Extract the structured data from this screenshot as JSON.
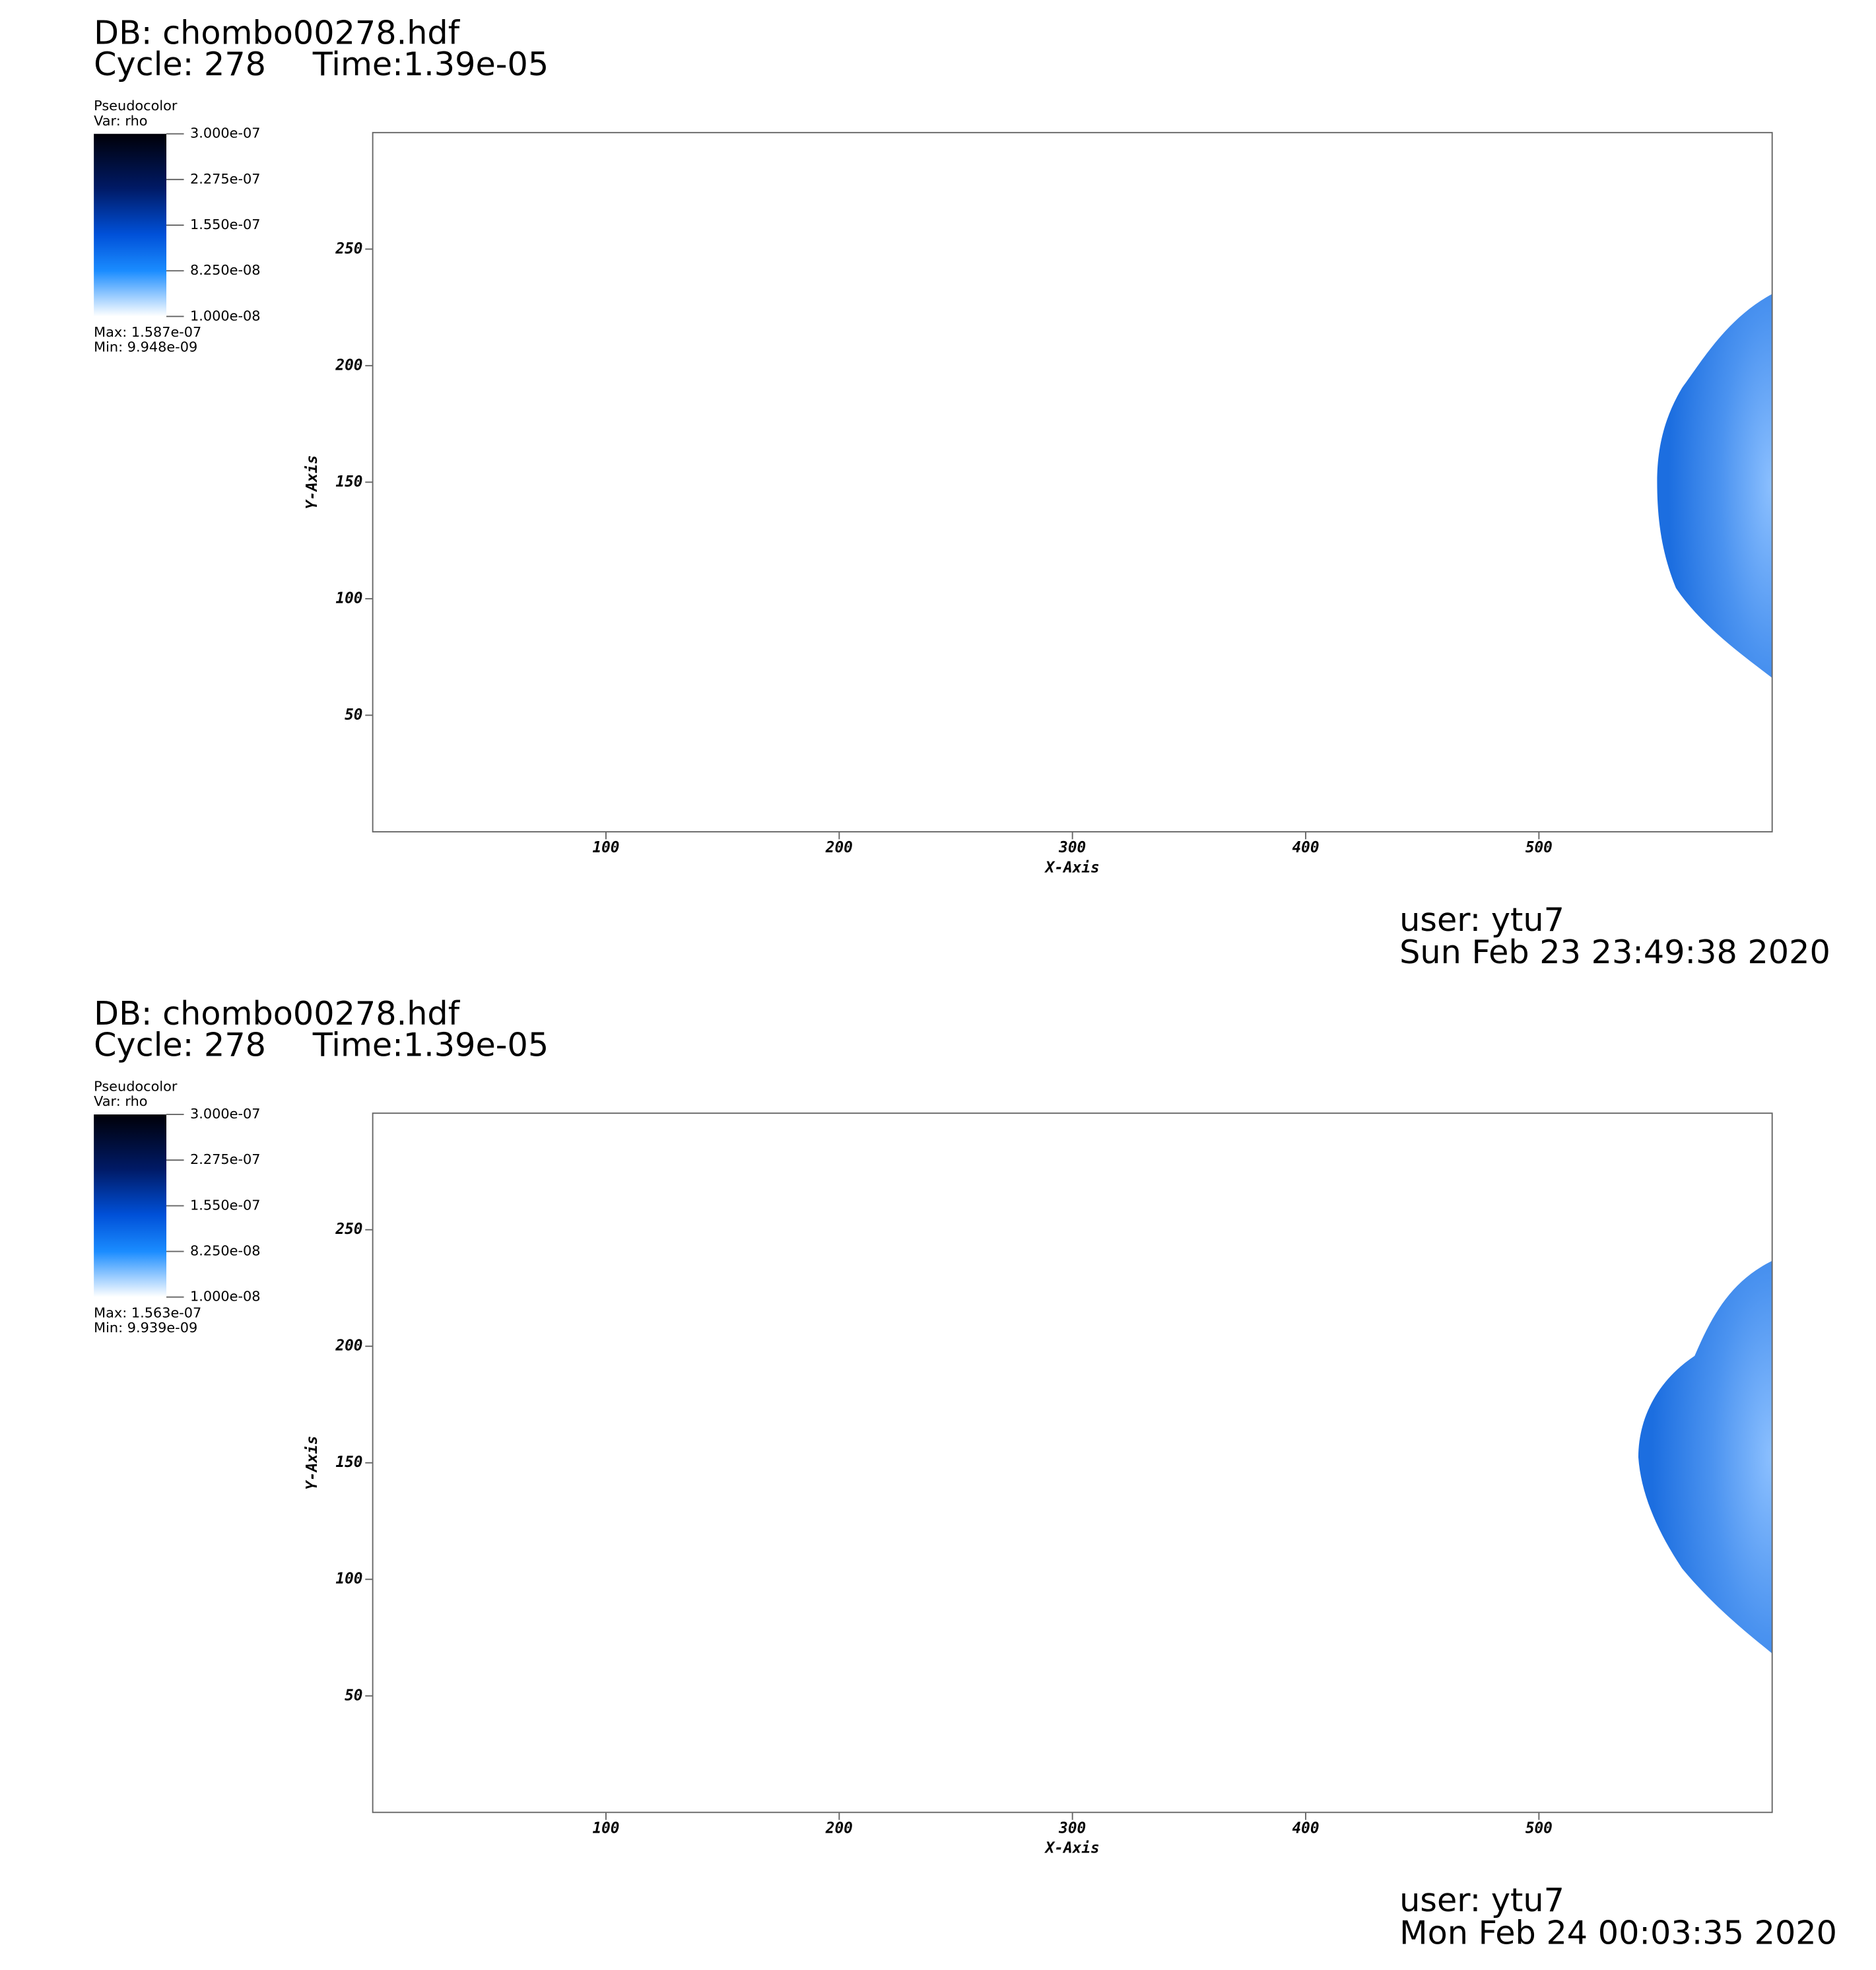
{
  "chart_data": [
    {
      "type": "pseudocolor",
      "db": "DB: chombo00278.hdf",
      "cycle": "Cycle: 278",
      "time": "Time:1.39e-05",
      "legend": {
        "title": "Pseudocolor",
        "var": "Var: rho",
        "range": [
          1e-08,
          3e-07
        ],
        "ticks": [
          {
            "value": 3e-07,
            "label": "3.000e-07"
          },
          {
            "value": 2.275e-07,
            "label": "2.275e-07"
          },
          {
            "value": 1.55e-07,
            "label": "1.550e-07"
          },
          {
            "value": 8.25e-08,
            "label": "8.250e-08"
          },
          {
            "value": 1e-08,
            "label": "1.000e-08"
          }
        ],
        "max": "Max:  1.587e-07",
        "min": "Min:  9.948e-09"
      },
      "x_label": "X-Axis",
      "y_label": "Y-Axis",
      "xlim": [
        0,
        600
      ],
      "xticks": [
        100,
        200,
        300,
        400,
        500
      ],
      "ylim": [
        0,
        300
      ],
      "yticks": [
        50,
        100,
        150,
        200,
        250
      ],
      "user": "user: ytu7",
      "date": "Sun Feb 23 23:49:38 2020"
    },
    {
      "type": "pseudocolor",
      "db": "DB: chombo00278.hdf",
      "cycle": "Cycle: 278",
      "time": "Time:1.39e-05",
      "legend": {
        "title": "Pseudocolor",
        "var": "Var: rho",
        "range": [
          1e-08,
          3e-07
        ],
        "ticks": [
          {
            "value": 3e-07,
            "label": "3.000e-07"
          },
          {
            "value": 2.275e-07,
            "label": "2.275e-07"
          },
          {
            "value": 1.55e-07,
            "label": "1.550e-07"
          },
          {
            "value": 8.25e-08,
            "label": "8.250e-08"
          },
          {
            "value": 1e-08,
            "label": "1.000e-08"
          }
        ],
        "max": "Max:  1.563e-07",
        "min": "Min:  9.939e-09"
      },
      "x_label": "X-Axis",
      "y_label": "Y-Axis",
      "xlim": [
        0,
        600
      ],
      "xticks": [
        100,
        200,
        300,
        400,
        500
      ],
      "ylim": [
        0,
        300
      ],
      "yticks": [
        50,
        100,
        150,
        200,
        250
      ],
      "user": "user: ytu7",
      "date": "Mon Feb 24 00:03:35 2020"
    }
  ]
}
